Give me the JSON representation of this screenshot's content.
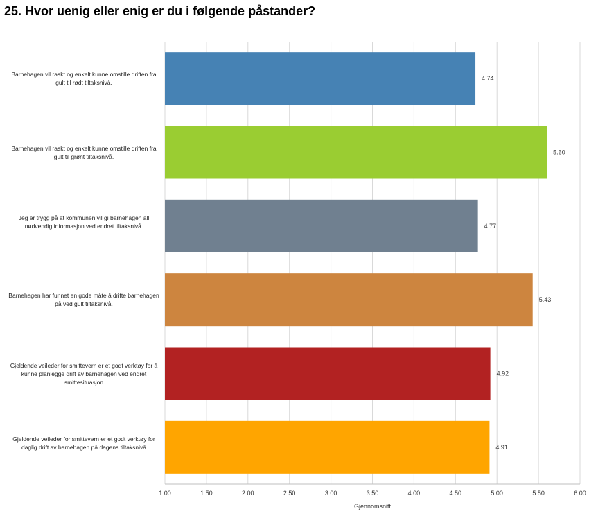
{
  "title": "25. Hvor uenig eller enig er du i følgende påstander?",
  "chart_data": {
    "type": "bar",
    "orientation": "horizontal",
    "categories": [
      "Barnehagen vil raskt og enkelt kunne omstille driften fra gult til rødt tiltaksnivå.",
      "Barnehagen vil raskt og enkelt kunne omstille driften fra gult til grønt tiltaksnivå.",
      "Jeg er trygg på at kommunen vil gi barnehagen all nødvendig informasjon ved endret tiltaksnivå.",
      "Barnehagen har funnet en gode måte å drifte barnehagen på ved gult tiltaksnivå.",
      "Gjeldende veileder for smittevern er et godt verktøy for å kunne planlegge drift av barnehagen ved endret smittesituasjon",
      "Gjeldende veileder for smittevern er et godt verktøy for daglig drift av barnehagen på dagens tiltaksnivå"
    ],
    "values": [
      4.74,
      5.6,
      4.77,
      5.43,
      4.92,
      4.91
    ],
    "value_labels": [
      "4.74",
      "5.60",
      "4.77",
      "5.43",
      "4.92",
      "4.91"
    ],
    "colors": [
      "#4682b4",
      "#9acd32",
      "#708090",
      "#cd853f",
      "#b22222",
      "#ffa500"
    ],
    "xlabel": "Gjennomsnitt",
    "xlim": [
      1.0,
      6.0
    ],
    "xticks": [
      "1.00",
      "1.50",
      "2.00",
      "2.50",
      "3.00",
      "3.50",
      "4.00",
      "4.50",
      "5.00",
      "5.50",
      "6.00"
    ],
    "grid": true
  }
}
